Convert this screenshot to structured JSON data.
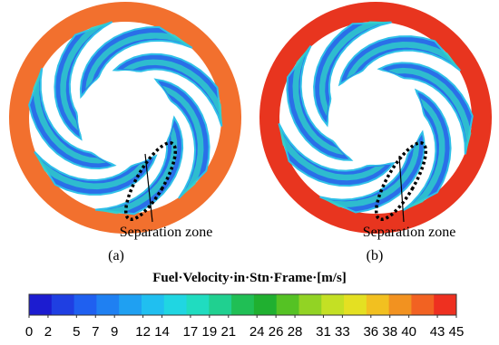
{
  "panels": [
    {
      "label": "(a)",
      "annotation": "Separation zone",
      "ring_color": "#f2702e"
    },
    {
      "label": "(b)",
      "annotation": "Separation zone",
      "ring_color": "#e8351f"
    }
  ],
  "colorbar": {
    "title": "Fuel·Velocity·in·Stn·Frame·[m/s]",
    "ticks": [
      0,
      2,
      5,
      7,
      9,
      12,
      14,
      17,
      19,
      21,
      24,
      26,
      28,
      31,
      33,
      36,
      38,
      40,
      43,
      45
    ],
    "colors": [
      "#1c1cd0",
      "#1f3fe2",
      "#1f60f0",
      "#1f80f2",
      "#1fa0f2",
      "#20bff0",
      "#20d6e2",
      "#20dcc0",
      "#20d090",
      "#20bf55",
      "#20b030",
      "#55c224",
      "#92d324",
      "#c4e024",
      "#e4e022",
      "#f2c020",
      "#f29220",
      "#f26222",
      "#ee3020"
    ]
  }
}
